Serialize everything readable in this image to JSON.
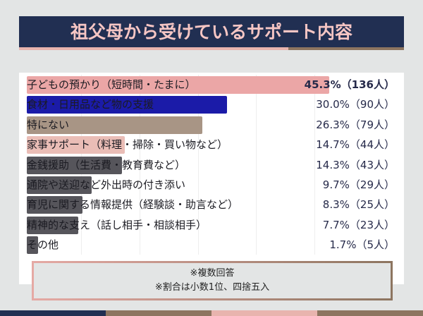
{
  "title": "祖父母から受けているサポート内容",
  "chart_data": {
    "type": "bar",
    "orientation": "horizontal",
    "title": "祖父母から受けているサポート内容",
    "categories": [
      "子どもの預かり（短時間・たまに）",
      "食材・日用品など物の支援",
      "特にない",
      "家事サポート（料理・掃除・買い物など）",
      "金銭援助（生活費・教育費など）",
      "通院や送迎など外出時の付き添い",
      "育児に関する情報提供（経験談・助言など）",
      "精神的な支え（話し相手・相談相手）",
      "その他"
    ],
    "values": [
      45.3,
      30.0,
      26.3,
      14.7,
      14.3,
      9.7,
      8.3,
      7.7,
      1.7
    ],
    "value_labels": [
      "45.3%（136人）",
      "30.0%（90人）",
      "26.3%（79人）",
      "14.7%（44人）",
      "14.3%（43人）",
      "9.7%（29人）",
      "8.3%（25人）",
      "7.7%（23人）",
      "1.7%（5人）"
    ],
    "counts": [
      136,
      90,
      79,
      44,
      43,
      29,
      25,
      23,
      5
    ],
    "colors": [
      "#eba6a6",
      "#1b1ba8",
      "#a89585",
      "#eabdb6",
      "#56555b",
      "#56555b",
      "#56555b",
      "#56555b",
      "#56555b"
    ],
    "grid": true
  },
  "notes": [
    "※複数回答",
    "※割合は小数1位、四捨五入"
  ],
  "palette": {
    "navy": "#212f52",
    "pink": "#e8b4ae",
    "brown": "#8d7560"
  }
}
